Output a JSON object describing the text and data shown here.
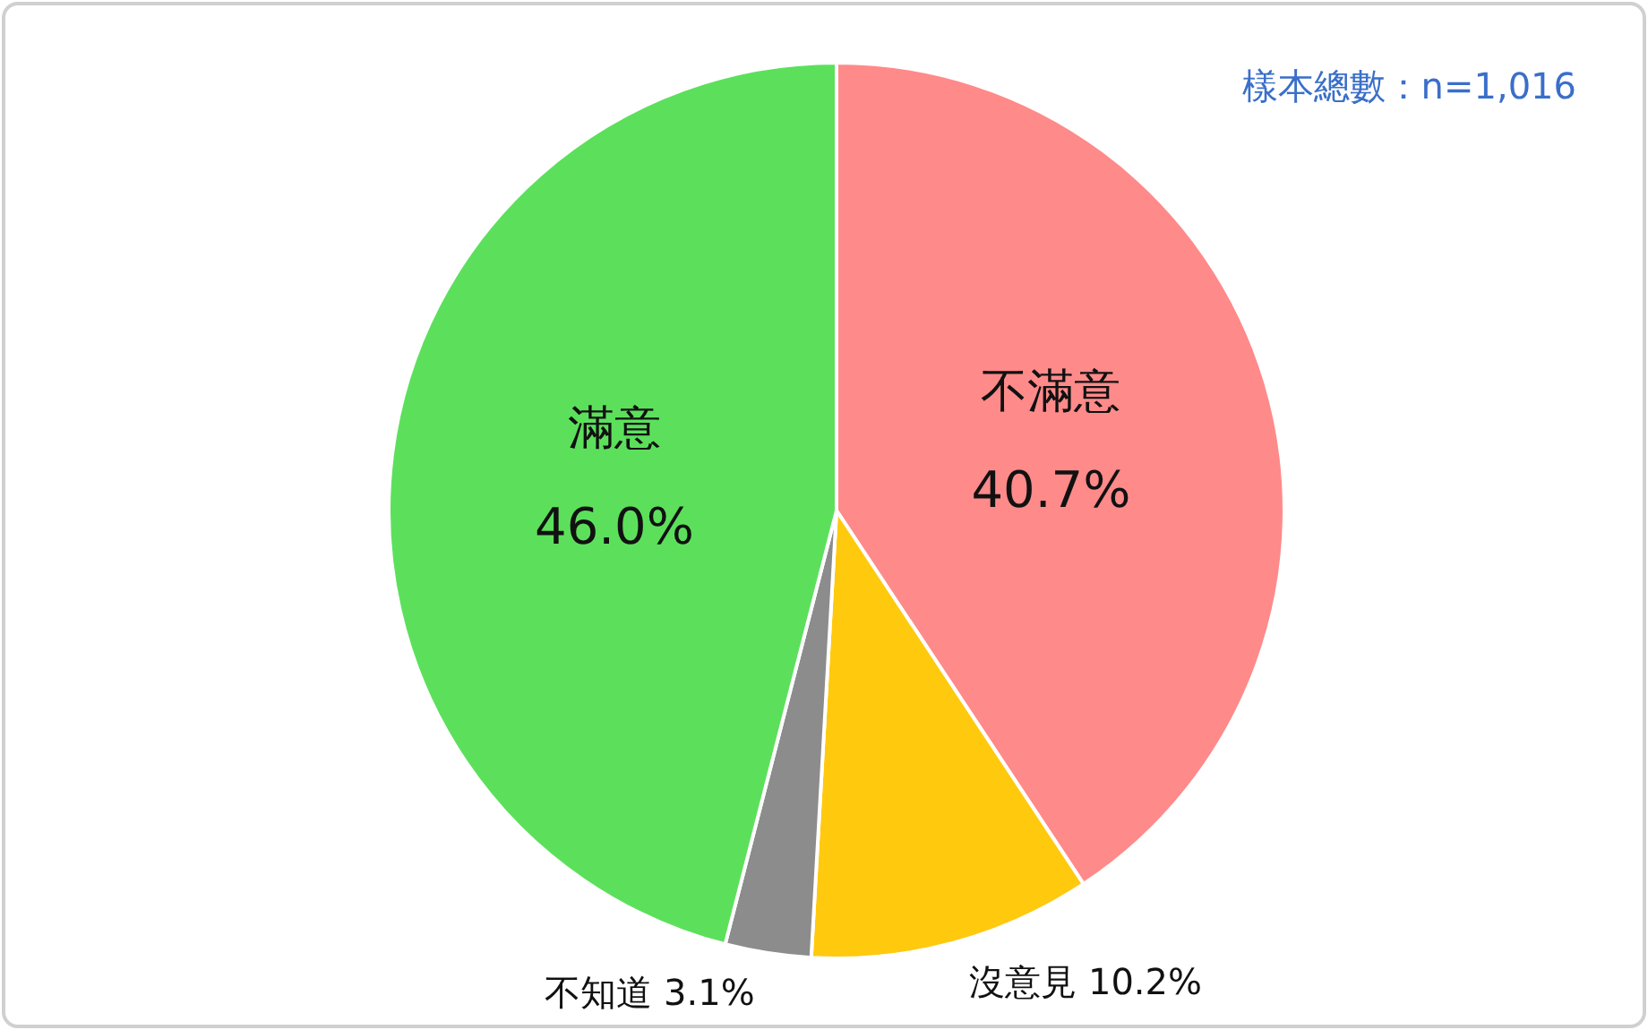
{
  "chart_data": {
    "type": "pie",
    "categories": [
      "不滿意",
      "沒意見",
      "不知道",
      "滿意"
    ],
    "values": [
      40.7,
      10.2,
      3.1,
      46.0
    ],
    "colors": [
      "#ff8a8a",
      "#ffc90e",
      "#8c8c8c",
      "#5ce05c"
    ],
    "value_labels": [
      "40.7%",
      "10.2%",
      "3.1%",
      "46.0%"
    ],
    "annotations": [
      "樣本總數：n=1,016"
    ]
  }
}
